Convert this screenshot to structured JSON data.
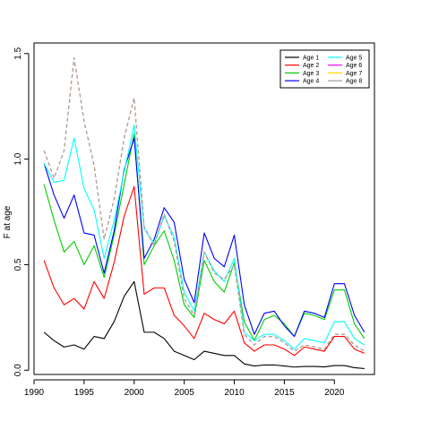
{
  "chart_data": {
    "type": "line",
    "title": "",
    "xlabel": "",
    "ylabel": "F at age",
    "xlim": [
      1990,
      2024
    ],
    "ylim": [
      -0.02,
      1.55
    ],
    "x_ticks": [
      1990,
      1995,
      2000,
      2005,
      2010,
      2015,
      2020
    ],
    "x_tick_labels": [
      "1990",
      "1995",
      "2000",
      "2005",
      "2010",
      "2015",
      "2020"
    ],
    "y_ticks": [
      0,
      0.5,
      1,
      1.5
    ],
    "y_tick_labels": [
      "0.0",
      "0.5",
      "1.0",
      "1.5"
    ],
    "grid": false,
    "legend_position": "top-right",
    "x": [
      1991,
      1992,
      1993,
      1994,
      1995,
      1996,
      1997,
      1998,
      1999,
      2000,
      2001,
      2002,
      2003,
      2004,
      2005,
      2006,
      2007,
      2008,
      2009,
      2010,
      2011,
      2012,
      2013,
      2014,
      2015,
      2016,
      2017,
      2018,
      2019,
      2020,
      2021,
      2022,
      2023
    ],
    "series": [
      {
        "name": "Age 1",
        "color": "#000000",
        "dashed": false,
        "values": [
          0.18,
          0.14,
          0.11,
          0.12,
          0.1,
          0.16,
          0.15,
          0.23,
          0.35,
          0.42,
          0.18,
          0.18,
          0.15,
          0.09,
          0.07,
          0.05,
          0.09,
          0.08,
          0.07,
          0.07,
          0.03,
          0.02,
          0.025,
          0.025,
          0.02,
          0.015,
          0.018,
          0.018,
          0.016,
          0.022,
          0.022,
          0.012,
          0.008
        ]
      },
      {
        "name": "Age 2",
        "color": "#ff0000",
        "dashed": false,
        "values": [
          0.52,
          0.39,
          0.31,
          0.34,
          0.29,
          0.42,
          0.34,
          0.51,
          0.73,
          0.87,
          0.36,
          0.39,
          0.39,
          0.26,
          0.21,
          0.15,
          0.27,
          0.24,
          0.22,
          0.28,
          0.13,
          0.09,
          0.12,
          0.12,
          0.1,
          0.07,
          0.11,
          0.1,
          0.09,
          0.16,
          0.16,
          0.1,
          0.08
        ]
      },
      {
        "name": "Age 3",
        "color": "#00cd00",
        "dashed": false,
        "values": [
          0.88,
          0.71,
          0.56,
          0.61,
          0.5,
          0.59,
          0.44,
          0.64,
          0.88,
          1.12,
          0.5,
          0.59,
          0.66,
          0.52,
          0.31,
          0.25,
          0.52,
          0.42,
          0.37,
          0.51,
          0.23,
          0.14,
          0.24,
          0.26,
          0.22,
          0.16,
          0.27,
          0.26,
          0.24,
          0.38,
          0.38,
          0.22,
          0.15
        ]
      },
      {
        "name": "Age 4",
        "color": "#0000ff",
        "dashed": false,
        "values": [
          0.98,
          0.83,
          0.72,
          0.83,
          0.65,
          0.64,
          0.46,
          0.66,
          0.95,
          1.1,
          0.53,
          0.62,
          0.77,
          0.7,
          0.43,
          0.32,
          0.65,
          0.53,
          0.49,
          0.64,
          0.31,
          0.17,
          0.27,
          0.28,
          0.21,
          0.16,
          0.28,
          0.27,
          0.25,
          0.41,
          0.41,
          0.26,
          0.18
        ]
      },
      {
        "name": "Age 5",
        "color": "#00ffff",
        "dashed": false,
        "values": [
          0.98,
          0.89,
          0.9,
          1.1,
          0.86,
          0.76,
          0.53,
          0.71,
          0.94,
          1.16,
          0.67,
          0.6,
          0.73,
          0.63,
          0.37,
          0.28,
          0.56,
          0.47,
          0.42,
          0.53,
          0.18,
          0.14,
          0.17,
          0.17,
          0.14,
          0.1,
          0.15,
          0.14,
          0.13,
          0.23,
          0.23,
          0.15,
          0.12
        ]
      },
      {
        "name": "Age 6",
        "color": "#ff00ff",
        "dashed": true,
        "values": [
          1.04,
          0.91,
          1.04,
          1.48,
          1.18,
          0.97,
          0.62,
          0.81,
          1.1,
          1.29,
          0.68,
          0.59,
          0.74,
          0.61,
          0.34,
          0.26,
          0.56,
          0.46,
          0.43,
          0.5,
          0.17,
          0.12,
          0.16,
          0.16,
          0.13,
          0.09,
          0.12,
          0.11,
          0.1,
          0.17,
          0.17,
          0.12,
          0.09
        ]
      },
      {
        "name": "Age 7",
        "color": "#ffd700",
        "dashed": true,
        "values": [
          1.04,
          0.91,
          1.04,
          1.48,
          1.18,
          0.97,
          0.62,
          0.81,
          1.1,
          1.29,
          0.68,
          0.59,
          0.74,
          0.61,
          0.34,
          0.26,
          0.56,
          0.46,
          0.43,
          0.5,
          0.17,
          0.12,
          0.16,
          0.16,
          0.13,
          0.09,
          0.12,
          0.11,
          0.1,
          0.17,
          0.17,
          0.12,
          0.09
        ]
      },
      {
        "name": "Age 8",
        "color": "#a0a0a0",
        "dashed": true,
        "values": [
          1.04,
          0.91,
          1.04,
          1.48,
          1.18,
          0.97,
          0.62,
          0.81,
          1.1,
          1.29,
          0.68,
          0.59,
          0.74,
          0.61,
          0.34,
          0.26,
          0.56,
          0.46,
          0.43,
          0.5,
          0.17,
          0.12,
          0.16,
          0.16,
          0.13,
          0.09,
          0.12,
          0.11,
          0.1,
          0.17,
          0.17,
          0.12,
          0.09
        ]
      }
    ]
  }
}
